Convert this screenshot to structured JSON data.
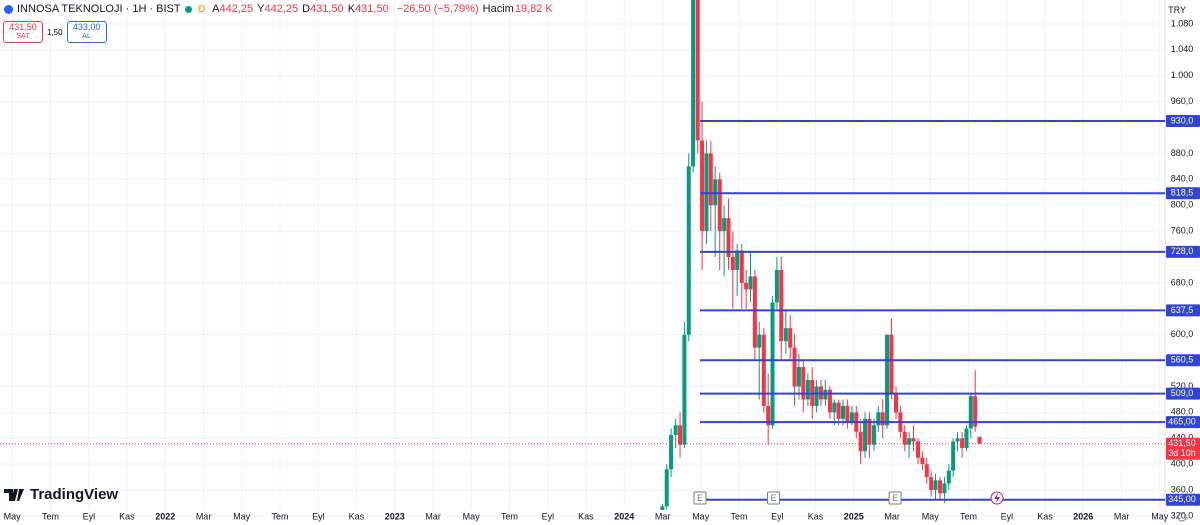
{
  "header": {
    "symbol": "INNOSA TEKNOLOJI · 1H · BIST",
    "badge": "D",
    "ohlc": [
      {
        "key": "A",
        "value": "442,25"
      },
      {
        "key": "Y",
        "value": "442,25"
      },
      {
        "key": "D",
        "value": "431,50"
      },
      {
        "key": "K",
        "value": "431,50"
      }
    ],
    "change": "−26,50 (−5,79%)",
    "volume_key": "Hacim",
    "volume": "19,82 K"
  },
  "trade": {
    "sell_price": "431,50",
    "sell_label": "SAT",
    "spread": "1,50",
    "buy_price": "433,00",
    "buy_label": "AL"
  },
  "currency": "TRY",
  "logo": "TradingView",
  "chart_data": {
    "type": "candlestick",
    "up_color": "#089981",
    "down_color": "#f23645",
    "grid": true,
    "x": [
      2024.166,
      2024.185,
      2024.204,
      2024.224,
      2024.243,
      2024.262,
      2024.281,
      2024.3,
      2024.32,
      2024.339,
      2024.358,
      2024.377,
      2024.396,
      2024.416,
      2024.435,
      2024.454,
      2024.473,
      2024.492,
      2024.512,
      2024.531,
      2024.55,
      2024.569,
      2024.588,
      2024.608,
      2024.627,
      2024.646,
      2024.665,
      2024.684,
      2024.704,
      2024.723,
      2024.742,
      2024.761,
      2024.78,
      2024.8,
      2024.819,
      2024.838,
      2024.857,
      2024.876,
      2024.896,
      2024.915,
      2024.934,
      2024.953,
      2024.972,
      2024.992,
      2025.011,
      2025.03,
      2025.049,
      2025.068,
      2025.088,
      2025.107,
      2025.126,
      2025.145,
      2025.164,
      2025.184,
      2025.203,
      2025.222,
      2025.241,
      2025.26,
      2025.28,
      2025.299,
      2025.318,
      2025.337,
      2025.356,
      2025.376,
      2025.395,
      2025.414,
      2025.433,
      2025.452,
      2025.472,
      2025.491,
      2025.51,
      2025.529,
      2025.548
    ],
    "open": [
      318,
      335,
      392,
      445,
      460,
      430,
      600,
      860,
      1120,
      900,
      760,
      880,
      800,
      840,
      760,
      780,
      720,
      700,
      730,
      680,
      670,
      690,
      580,
      600,
      490,
      460,
      650,
      700,
      590,
      610,
      580,
      520,
      550,
      500,
      530,
      490,
      520,
      500,
      515,
      480,
      495,
      470,
      490,
      465,
      480,
      450,
      420,
      470,
      430,
      460,
      480,
      460,
      600,
      510,
      480,
      450,
      430,
      440,
      435,
      410,
      400,
      380,
      360,
      375,
      355,
      370,
      390,
      435,
      440,
      425,
      455,
      505,
      442.25
    ],
    "high": [
      338,
      400,
      455,
      470,
      480,
      620,
      880,
      1160,
      1140,
      960,
      900,
      900,
      860,
      850,
      800,
      810,
      760,
      740,
      740,
      700,
      730,
      700,
      620,
      610,
      540,
      660,
      720,
      720,
      640,
      630,
      600,
      570,
      560,
      540,
      550,
      530,
      530,
      530,
      520,
      500,
      500,
      500,
      500,
      490,
      490,
      470,
      480,
      480,
      470,
      490,
      500,
      600,
      625,
      520,
      490,
      460,
      450,
      460,
      440,
      420,
      410,
      390,
      385,
      380,
      380,
      400,
      440,
      450,
      450,
      460,
      510,
      545,
      442.25
    ],
    "low": [
      312,
      330,
      380,
      425,
      410,
      425,
      590,
      850,
      880,
      700,
      740,
      760,
      720,
      700,
      690,
      700,
      640,
      660,
      640,
      640,
      650,
      560,
      500,
      480,
      430,
      455,
      640,
      560,
      570,
      560,
      490,
      500,
      480,
      490,
      470,
      480,
      490,
      490,
      470,
      460,
      460,
      460,
      455,
      460,
      440,
      400,
      410,
      410,
      420,
      450,
      440,
      455,
      500,
      470,
      440,
      420,
      410,
      420,
      400,
      390,
      370,
      350,
      345,
      345,
      340,
      360,
      380,
      420,
      410,
      420,
      440,
      450,
      431.5
    ],
    "close": [
      335,
      392,
      445,
      460,
      430,
      600,
      860,
      1120,
      900,
      760,
      880,
      800,
      840,
      760,
      780,
      720,
      700,
      730,
      680,
      670,
      690,
      580,
      600,
      490,
      460,
      650,
      700,
      590,
      610,
      580,
      520,
      550,
      500,
      530,
      490,
      520,
      500,
      515,
      480,
      495,
      470,
      490,
      465,
      480,
      450,
      420,
      470,
      430,
      460,
      480,
      460,
      600,
      510,
      480,
      450,
      430,
      440,
      435,
      410,
      400,
      380,
      360,
      375,
      355,
      370,
      390,
      435,
      440,
      425,
      455,
      505,
      458,
      431.5
    ],
    "xlim": [
      2021.28,
      2026.356
    ],
    "xticks": [
      {
        "value": 2021.333,
        "label": "May"
      },
      {
        "value": 2021.5,
        "label": "Tem"
      },
      {
        "value": 2021.667,
        "label": "Eyl"
      },
      {
        "value": 2021.833,
        "label": "Kas"
      },
      2022,
      {
        "value": 2022.167,
        "label": "Mar"
      },
      {
        "value": 2022.333,
        "label": "May"
      },
      {
        "value": 2022.5,
        "label": "Tem"
      },
      {
        "value": 2022.667,
        "label": "Eyl"
      },
      {
        "value": 2022.833,
        "label": "Kas"
      },
      2023,
      {
        "value": 2023.167,
        "label": "Mar"
      },
      {
        "value": 2023.333,
        "label": "May"
      },
      {
        "value": 2023.5,
        "label": "Tem"
      },
      {
        "value": 2023.667,
        "label": "Eyl"
      },
      {
        "value": 2023.833,
        "label": "Kas"
      },
      2024,
      {
        "value": 2024.167,
        "label": "Mar"
      },
      {
        "value": 2024.333,
        "label": "May"
      },
      {
        "value": 2024.5,
        "label": "Tem"
      },
      {
        "value": 2024.667,
        "label": "Eyl"
      },
      {
        "value": 2024.833,
        "label": "Kas"
      },
      2025,
      {
        "value": 2025.167,
        "label": "Mar"
      },
      {
        "value": 2025.333,
        "label": "May"
      },
      {
        "value": 2025.5,
        "label": "Tem"
      },
      {
        "value": 2025.667,
        "label": "Eyl"
      },
      {
        "value": 2025.833,
        "label": "Kas"
      },
      2026,
      {
        "value": 2026.167,
        "label": "Mar"
      },
      {
        "value": 2026.333,
        "label": "May"
      }
    ],
    "ylim": [
      306,
      1117
    ],
    "yticks": [
      {
        "value": 320,
        "label": "320,0"
      },
      {
        "value": 360,
        "label": "360,0"
      },
      {
        "value": 400,
        "label": "400,0"
      },
      {
        "value": 440,
        "label": "440,0"
      },
      {
        "value": 480,
        "label": "480,0"
      },
      {
        "value": 520,
        "label": "520,0"
      },
      {
        "value": 600,
        "label": "600,0"
      },
      {
        "value": 680,
        "label": "680,0"
      },
      {
        "value": 760,
        "label": "760,0"
      },
      {
        "value": 800,
        "label": "800,0"
      },
      {
        "value": 840,
        "label": "840,0"
      },
      {
        "value": 880,
        "label": "880,0"
      },
      {
        "value": 960,
        "label": "960,0"
      },
      {
        "value": 1000,
        "label": "1.000"
      },
      {
        "value": 1040,
        "label": "1.040"
      },
      {
        "value": 1080,
        "label": "1.080"
      }
    ],
    "levels": [
      {
        "value": 930,
        "label": "930,0"
      },
      {
        "value": 818.5,
        "label": "818,5"
      },
      {
        "value": 728,
        "label": "728,0"
      },
      {
        "value": 637.5,
        "label": "637,5"
      },
      {
        "value": 560.5,
        "label": "560,5"
      },
      {
        "value": 509,
        "label": "509,0"
      },
      {
        "value": 465,
        "label": "465,00"
      },
      {
        "value": 345,
        "label": "345,00"
      }
    ],
    "level_color": "#3144d6",
    "last_price": {
      "value": 431.5,
      "label": "431,50",
      "countdown": "3d 10h"
    },
    "events": [
      {
        "x": 2024.33,
        "label": "E"
      },
      {
        "x": 2024.65,
        "label": "E"
      },
      {
        "x": 2025.18,
        "label": "E"
      }
    ]
  }
}
